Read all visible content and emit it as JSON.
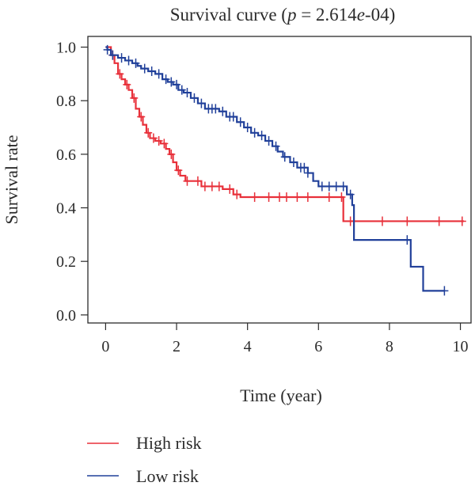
{
  "chart_data": {
    "type": "line",
    "title": {
      "prefix": "Survival curve (",
      "p_symbol": "p",
      "equals": " = 2.614",
      "e_symbol": "e",
      "exponent": "-04)"
    },
    "xlabel": "Time (year)",
    "ylabel": "Survival rate",
    "xlim": [
      -0.5,
      10.3
    ],
    "ylim": [
      -0.03,
      1.04
    ],
    "x_ticks": [
      0,
      2,
      4,
      6,
      8,
      10
    ],
    "y_ticks": [
      0.0,
      0.2,
      0.4,
      0.6,
      0.8,
      1.0
    ],
    "x_tick_labels": [
      "0",
      "2",
      "4",
      "6",
      "8",
      "10"
    ],
    "y_tick_labels": [
      "0.0",
      "0.2",
      "0.4",
      "0.6",
      "0.8",
      "1.0"
    ],
    "grid": false,
    "legend_position": "bottom-left",
    "series": [
      {
        "name": "High risk",
        "color": "#e8303a",
        "steps": [
          [
            0,
            1.0
          ],
          [
            0.15,
            0.97
          ],
          [
            0.25,
            0.94
          ],
          [
            0.35,
            0.9
          ],
          [
            0.45,
            0.88
          ],
          [
            0.55,
            0.86
          ],
          [
            0.65,
            0.84
          ],
          [
            0.75,
            0.81
          ],
          [
            0.85,
            0.77
          ],
          [
            0.95,
            0.74
          ],
          [
            1.05,
            0.71
          ],
          [
            1.15,
            0.68
          ],
          [
            1.25,
            0.66
          ],
          [
            1.4,
            0.65
          ],
          [
            1.55,
            0.64
          ],
          [
            1.7,
            0.62
          ],
          [
            1.8,
            0.6
          ],
          [
            1.9,
            0.57
          ],
          [
            2.0,
            0.54
          ],
          [
            2.1,
            0.52
          ],
          [
            2.25,
            0.5
          ],
          [
            2.5,
            0.5
          ],
          [
            2.7,
            0.48
          ],
          [
            3.3,
            0.47
          ],
          [
            3.6,
            0.45
          ],
          [
            3.8,
            0.44
          ],
          [
            6.7,
            0.35
          ],
          [
            10.1,
            0.35
          ]
        ],
        "censored_x": [
          0.2,
          0.4,
          0.6,
          0.8,
          1.0,
          1.2,
          1.35,
          1.5,
          1.65,
          1.85,
          2.05,
          2.3,
          2.6,
          2.8,
          3.0,
          3.2,
          3.5,
          3.7,
          4.2,
          4.6,
          4.9,
          5.1,
          5.4,
          5.7,
          6.3,
          6.65,
          6.9,
          7.8,
          8.5,
          9.4,
          10.05
        ]
      },
      {
        "name": "Low risk",
        "color": "#21409a",
        "steps": [
          [
            0,
            1.0
          ],
          [
            0.05,
            0.99
          ],
          [
            0.15,
            0.97
          ],
          [
            0.35,
            0.96
          ],
          [
            0.55,
            0.95
          ],
          [
            0.75,
            0.94
          ],
          [
            0.9,
            0.93
          ],
          [
            1.0,
            0.92
          ],
          [
            1.2,
            0.91
          ],
          [
            1.4,
            0.9
          ],
          [
            1.6,
            0.88
          ],
          [
            1.75,
            0.87
          ],
          [
            1.9,
            0.86
          ],
          [
            2.05,
            0.84
          ],
          [
            2.2,
            0.83
          ],
          [
            2.4,
            0.81
          ],
          [
            2.6,
            0.79
          ],
          [
            2.8,
            0.77
          ],
          [
            3.2,
            0.76
          ],
          [
            3.4,
            0.74
          ],
          [
            3.7,
            0.72
          ],
          [
            3.9,
            0.7
          ],
          [
            4.1,
            0.68
          ],
          [
            4.3,
            0.67
          ],
          [
            4.5,
            0.65
          ],
          [
            4.7,
            0.63
          ],
          [
            4.85,
            0.61
          ],
          [
            5.0,
            0.59
          ],
          [
            5.2,
            0.57
          ],
          [
            5.4,
            0.55
          ],
          [
            5.7,
            0.53
          ],
          [
            5.85,
            0.5
          ],
          [
            6.0,
            0.48
          ],
          [
            6.5,
            0.48
          ],
          [
            6.8,
            0.45
          ],
          [
            6.95,
            0.41
          ],
          [
            7.0,
            0.28
          ],
          [
            8.6,
            0.18
          ],
          [
            8.95,
            0.09
          ],
          [
            9.55,
            0.09
          ]
        ],
        "censored_x": [
          0.05,
          0.2,
          0.45,
          0.65,
          0.85,
          1.1,
          1.3,
          1.5,
          1.7,
          1.85,
          2.0,
          2.15,
          2.3,
          2.5,
          2.7,
          2.9,
          3.0,
          3.1,
          3.3,
          3.5,
          3.6,
          3.8,
          4.0,
          4.2,
          4.4,
          4.6,
          4.8,
          5.05,
          5.3,
          5.5,
          5.6,
          5.7,
          6.1,
          6.3,
          6.5,
          6.7,
          6.9,
          8.5,
          9.55
        ]
      }
    ]
  }
}
